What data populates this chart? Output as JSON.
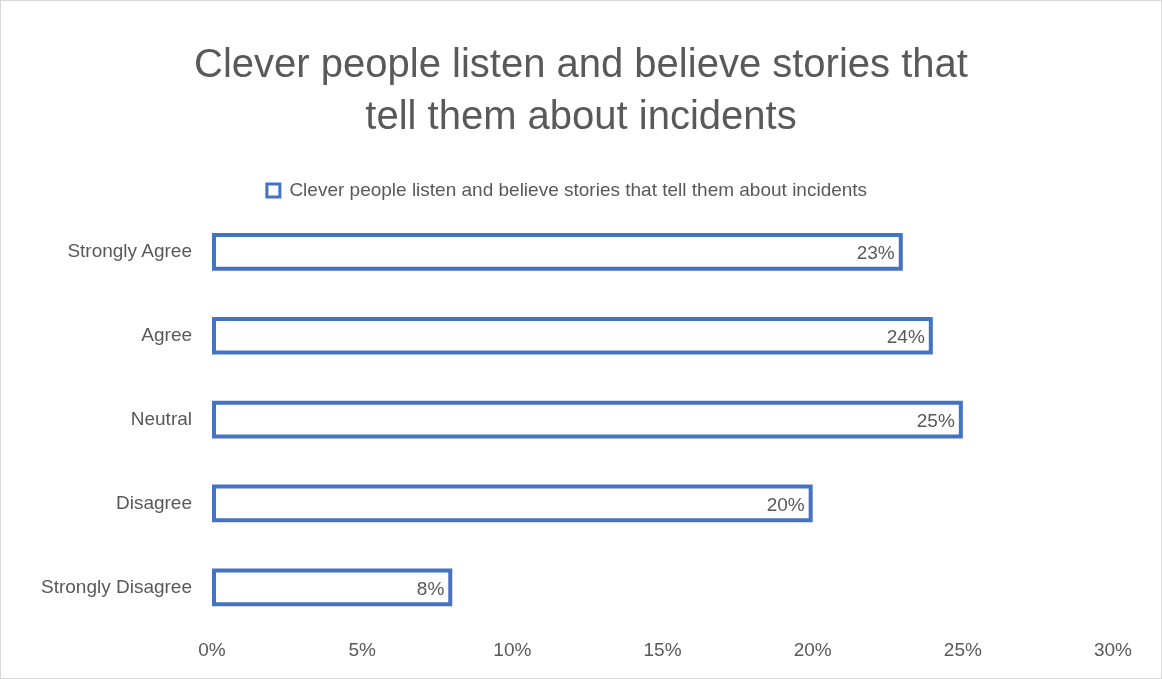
{
  "chart_data": {
    "type": "bar",
    "orientation": "horizontal",
    "title": "Clever people listen and believe stories that tell them about incidents",
    "categories": [
      "Strongly Agree",
      "Agree",
      "Neutral",
      "Disagree",
      "Strongly Disagree"
    ],
    "series": [
      {
        "name": "Clever people listen and believe stories that tell them about incidents",
        "color": "#4472c4",
        "values": [
          23,
          24,
          25,
          20,
          8
        ],
        "value_labels": [
          "23%",
          "24%",
          "25%",
          "20%",
          "8%"
        ]
      }
    ],
    "xlim": [
      0,
      30
    ],
    "xticks": [
      {
        "value": 0,
        "label": "0%"
      },
      {
        "value": 5,
        "label": "5%"
      },
      {
        "value": 10,
        "label": "10%"
      },
      {
        "value": 15,
        "label": "15%"
      },
      {
        "value": 20,
        "label": "20%"
      },
      {
        "value": 25,
        "label": "25%"
      },
      {
        "value": 30,
        "label": "30%"
      }
    ],
    "grid": false,
    "legend": "top"
  }
}
